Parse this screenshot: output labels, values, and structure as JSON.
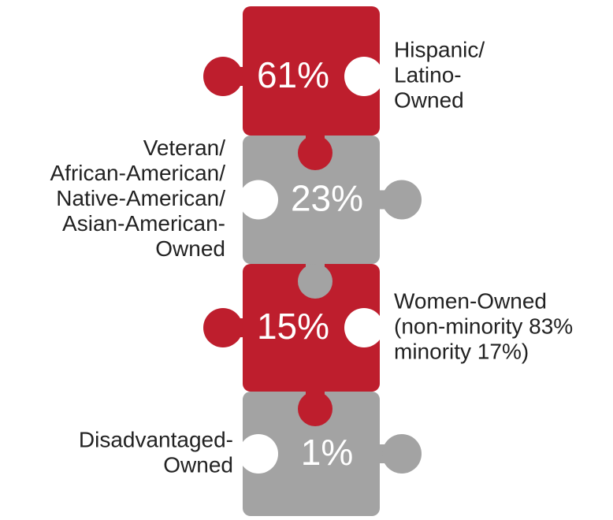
{
  "pieces": [
    {
      "value": "61%",
      "caption": [
        "Hispanic/",
        "Latino-",
        "Owned"
      ]
    },
    {
      "value": "23%",
      "caption": [
        "Veteran/",
        "African-American/",
        "Native-American/",
        "Asian-American-",
        "Owned"
      ]
    },
    {
      "value": "15%",
      "caption": [
        "Women-Owned",
        "(non-minority 83%",
        "minority 17%)"
      ]
    },
    {
      "value": "1%",
      "caption": [
        "Disadvantaged-",
        "Owned"
      ]
    }
  ]
}
